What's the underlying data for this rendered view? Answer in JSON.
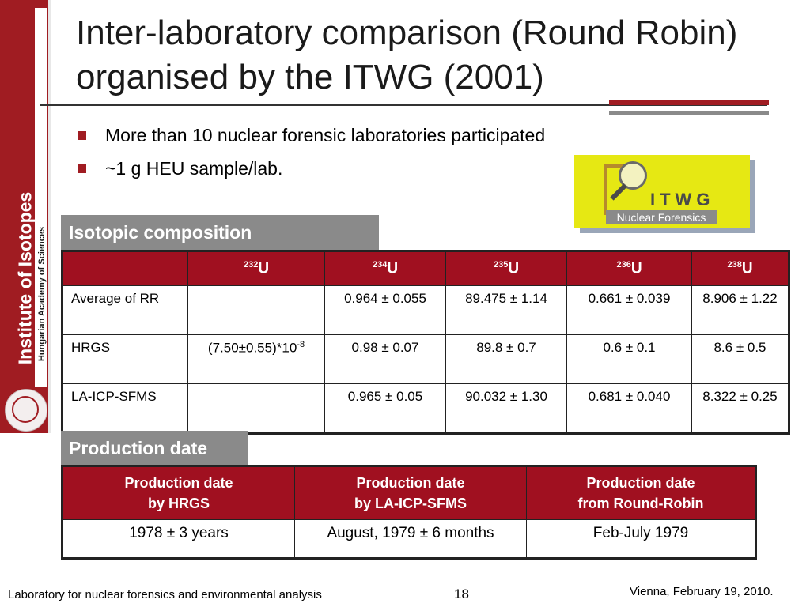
{
  "sidebar": {
    "institute": "Institute of Isotopes",
    "academy": "Hungarian Academy of Sciences"
  },
  "title": "Inter-laboratory comparison (Round Robin) organised by the ITWG (2001)",
  "bullets": [
    "More than 10 nuclear forensic laboratories participated",
    "~1 g HEU sample/lab."
  ],
  "logo": {
    "main": "ITWG",
    "sub": "Nuclear Forensics"
  },
  "isotopic": {
    "label": "Isotopic composition",
    "headers": [
      {
        "mass": "232",
        "sym": "U"
      },
      {
        "mass": "234",
        "sym": "U"
      },
      {
        "mass": "235",
        "sym": "U"
      },
      {
        "mass": "236",
        "sym": "U"
      },
      {
        "mass": "238",
        "sym": "U"
      }
    ],
    "rows": [
      {
        "label": "Average of RR",
        "u232": "",
        "u232_exp": "",
        "u234": "0.964 ± 0.055",
        "u235": "89.475 ± 1.14",
        "u236": "0.661 ± 0.039",
        "u238": "8.906 ± 1.22"
      },
      {
        "label": "HRGS",
        "u232": "(7.50±0.55)*10",
        "u232_exp": "-8",
        "u234": "0.98 ± 0.07",
        "u235": "89.8 ± 0.7",
        "u236": "0.6 ± 0.1",
        "u238": "8.6 ± 0.5"
      },
      {
        "label": "LA-ICP-SFMS",
        "u232": "",
        "u232_exp": "",
        "u234": "0.965 ± 0.05",
        "u235": "90.032 ± 1.30",
        "u236": "0.681 ± 0.040",
        "u238": "8.322 ± 0.25"
      }
    ]
  },
  "production": {
    "label": "Production date",
    "headers": [
      {
        "line1": "Production date",
        "line2": "by HRGS"
      },
      {
        "line1": "Production date",
        "line2": "by LA-ICP-SFMS"
      },
      {
        "line1": "Production date",
        "line2": "from Round-Robin"
      }
    ],
    "values": [
      "1978 ± 3 years",
      "August, 1979 ± 6 months",
      "Feb-July 1979"
    ]
  },
  "footer": {
    "left": "Laboratory for nuclear forensics and environmental analysis",
    "page": "18",
    "right": "Vienna, February 19, 2010."
  },
  "colors": {
    "accent": "#a01c22",
    "header_bg": "#a01020",
    "label_bg": "#8a8a8a"
  }
}
